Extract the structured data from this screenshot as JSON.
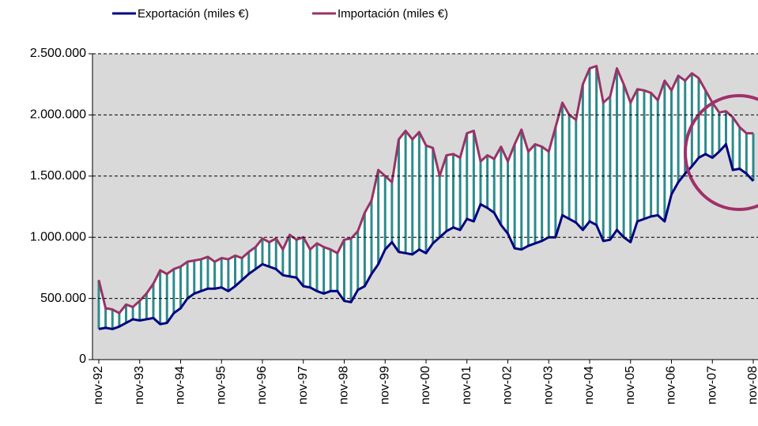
{
  "chart_data": {
    "type": "line",
    "categories": [
      "nov-92",
      null,
      null,
      null,
      null,
      null,
      "nov-93",
      null,
      null,
      null,
      null,
      null,
      "nov-94",
      null,
      null,
      null,
      null,
      null,
      "nov-95",
      null,
      null,
      null,
      null,
      null,
      "nov-96",
      null,
      null,
      null,
      null,
      null,
      "nov-97",
      null,
      null,
      null,
      null,
      null,
      "nov-98",
      null,
      null,
      null,
      null,
      null,
      "nov-99",
      null,
      null,
      null,
      null,
      null,
      "nov-00",
      null,
      null,
      null,
      null,
      null,
      "nov-01",
      null,
      null,
      null,
      null,
      null,
      "nov-02",
      null,
      null,
      null,
      null,
      null,
      "nov-03",
      null,
      null,
      null,
      null,
      null,
      "nov-04",
      null,
      null,
      null,
      null,
      null,
      "nov-05",
      null,
      null,
      null,
      null,
      null,
      "nov-06",
      null,
      null,
      null,
      null,
      null,
      "nov-07",
      null,
      null,
      null,
      null,
      null,
      "nov-08"
    ],
    "series": [
      {
        "name": "Exportación (miles €)",
        "color": "#000080",
        "values": [
          250000,
          260000,
          250000,
          270000,
          300000,
          330000,
          320000,
          330000,
          340000,
          290000,
          300000,
          380000,
          420000,
          500000,
          540000,
          560000,
          580000,
          580000,
          590000,
          560000,
          600000,
          650000,
          700000,
          740000,
          780000,
          760000,
          740000,
          690000,
          680000,
          670000,
          600000,
          590000,
          560000,
          540000,
          560000,
          560000,
          480000,
          470000,
          570000,
          600000,
          700000,
          780000,
          900000,
          960000,
          880000,
          870000,
          860000,
          900000,
          870000,
          950000,
          1000000,
          1050000,
          1080000,
          1060000,
          1150000,
          1130000,
          1270000,
          1240000,
          1200000,
          1100000,
          1030000,
          910000,
          900000,
          930000,
          950000,
          970000,
          1000000,
          1000000,
          1180000,
          1150000,
          1120000,
          1060000,
          1130000,
          1100000,
          970000,
          980000,
          1060000,
          1000000,
          960000,
          1130000,
          1150000,
          1170000,
          1180000,
          1130000,
          1350000,
          1450000,
          1520000,
          1580000,
          1650000,
          1680000,
          1650000,
          1700000,
          1760000,
          1550000,
          1560000,
          1520000,
          1460000
        ]
      },
      {
        "name": "Importación (miles €)",
        "color": "#993366",
        "values": [
          650000,
          420000,
          410000,
          380000,
          450000,
          430000,
          480000,
          540000,
          620000,
          730000,
          700000,
          740000,
          760000,
          800000,
          810000,
          820000,
          840000,
          800000,
          830000,
          820000,
          850000,
          830000,
          880000,
          920000,
          990000,
          960000,
          990000,
          900000,
          1020000,
          980000,
          1000000,
          900000,
          950000,
          920000,
          900000,
          870000,
          980000,
          990000,
          1050000,
          1200000,
          1300000,
          1550000,
          1500000,
          1450000,
          1800000,
          1870000,
          1800000,
          1860000,
          1750000,
          1730000,
          1500000,
          1670000,
          1680000,
          1650000,
          1850000,
          1870000,
          1620000,
          1670000,
          1640000,
          1740000,
          1620000,
          1760000,
          1880000,
          1700000,
          1760000,
          1740000,
          1700000,
          1900000,
          2100000,
          2000000,
          1960000,
          2250000,
          2380000,
          2400000,
          2100000,
          2150000,
          2380000,
          2250000,
          2100000,
          2210000,
          2200000,
          2180000,
          2120000,
          2280000,
          2200000,
          2320000,
          2280000,
          2340000,
          2300000,
          2200000,
          2100000,
          2020000,
          2030000,
          1980000,
          1900000,
          1850000,
          1850000
        ]
      }
    ],
    "ylim": [
      0,
      2500000
    ],
    "yticks": [
      0,
      {
        "value": 500000,
        "label": "500.000"
      },
      {
        "value": 1000000,
        "label": "1.000.000"
      },
      {
        "value": 1500000,
        "label": "1.500.000"
      },
      {
        "value": 2000000,
        "label": "2.000.000"
      },
      {
        "value": 2500000,
        "label": "2.500.000"
      }
    ],
    "grid": true,
    "legend": "top",
    "band_color": "#2e8b8b"
  }
}
